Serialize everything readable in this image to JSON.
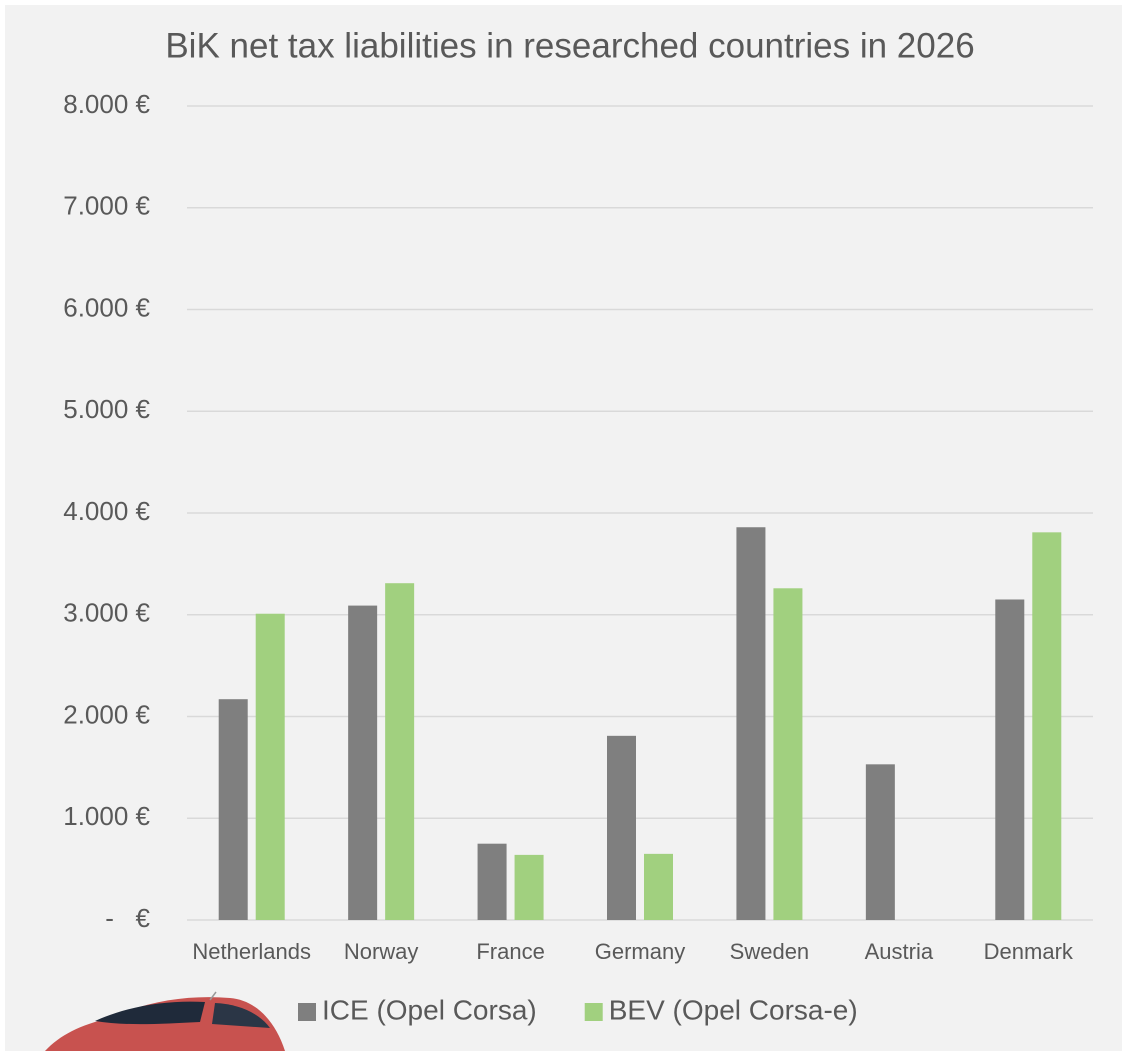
{
  "chart_data": {
    "type": "bar",
    "title": "BiK net tax liabilities in researched countries in 2026",
    "categories": [
      "Netherlands",
      "Norway",
      "France",
      "Germany",
      "Sweden",
      "Austria",
      "Denmark"
    ],
    "series": [
      {
        "name": "ICE (Opel Corsa)",
        "color": "#7f7f7f",
        "values": [
          2170,
          3090,
          750,
          1810,
          3860,
          1530,
          3150
        ]
      },
      {
        "name": "BEV (Opel Corsa-e)",
        "color": "#a1d07f",
        "values": [
          3010,
          3310,
          640,
          650,
          3260,
          0,
          3810
        ]
      }
    ],
    "ylim": [
      0,
      8000
    ],
    "yticks": [
      {
        "value": 0,
        "label": "-   €"
      },
      {
        "value": 1000,
        "label": "1.000 €"
      },
      {
        "value": 2000,
        "label": "2.000 €"
      },
      {
        "value": 3000,
        "label": "3.000 €"
      },
      {
        "value": 4000,
        "label": "4.000 €"
      },
      {
        "value": 5000,
        "label": "5.000 €"
      },
      {
        "value": 6000,
        "label": "6.000 €"
      },
      {
        "value": 7000,
        "label": "7.000 €"
      },
      {
        "value": 8000,
        "label": "8.000 €"
      }
    ],
    "grid": true
  }
}
